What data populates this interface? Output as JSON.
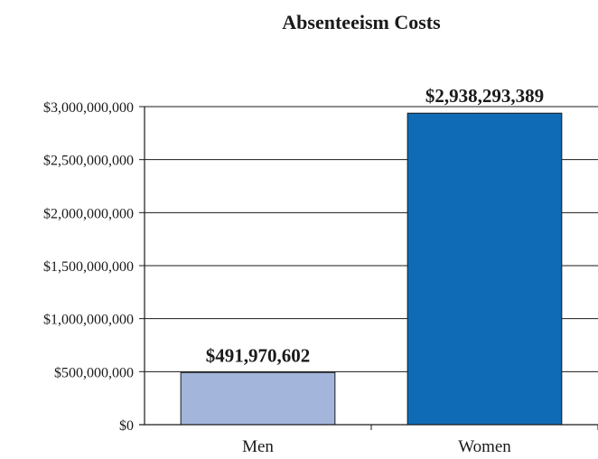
{
  "chart_data": {
    "type": "bar",
    "title": "Absenteeism Costs",
    "categories": [
      "Men",
      "Women"
    ],
    "values": [
      491970602,
      2938293389
    ],
    "data_labels": [
      "$491,970,602",
      "$2,938,293,389"
    ],
    "bar_colors": [
      "#a3b5db",
      "#0f6bb5"
    ],
    "ylim": [
      0,
      3000000000
    ],
    "yticks": [
      0,
      500000000,
      1000000000,
      1500000000,
      2000000000,
      2500000000,
      3000000000
    ],
    "ytick_labels": [
      "$0",
      "$500,000,000",
      "$1,000,000,000",
      "$1,500,000,000",
      "$2,000,000,000",
      "$2,500,000,000",
      "$3,000,000,000"
    ],
    "xlabel": "",
    "ylabel": "",
    "grid": true,
    "legend": "none"
  }
}
